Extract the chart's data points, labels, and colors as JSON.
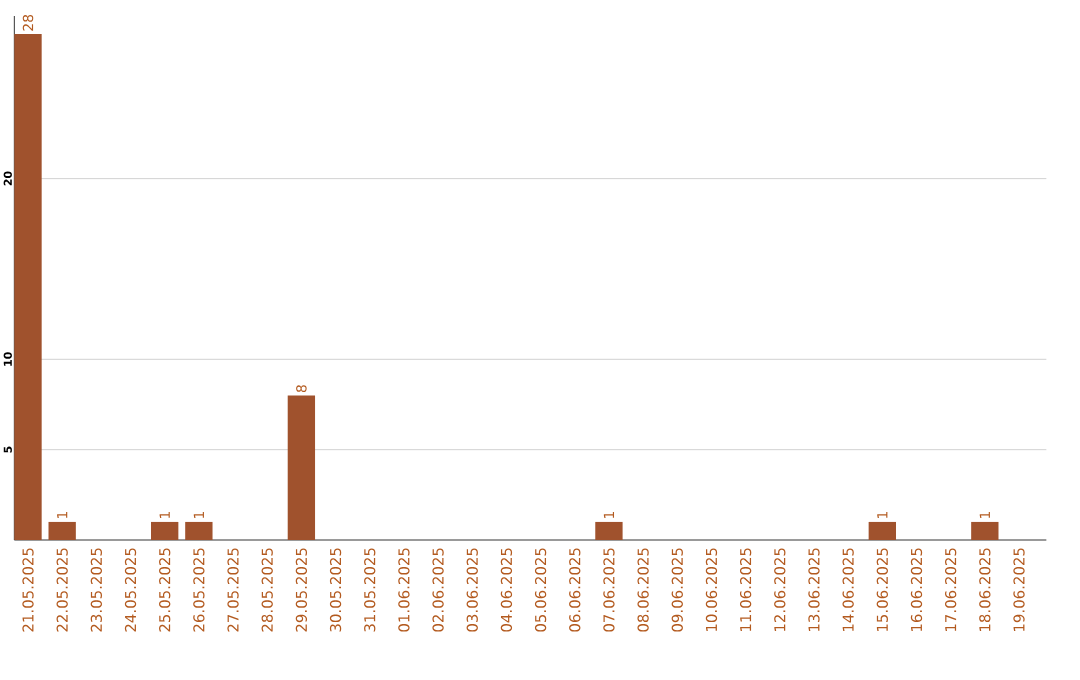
{
  "chart_data": {
    "type": "bar",
    "categories": [
      "21.05.2025",
      "22.05.2025",
      "23.05.2025",
      "24.05.2025",
      "25.05.2025",
      "26.05.2025",
      "27.05.2025",
      "28.05.2025",
      "29.05.2025",
      "30.05.2025",
      "31.05.2025",
      "01.06.2025",
      "02.06.2025",
      "03.06.2025",
      "04.06.2025",
      "05.06.2025",
      "06.06.2025",
      "07.06.2025",
      "08.06.2025",
      "09.06.2025",
      "10.06.2025",
      "11.06.2025",
      "12.06.2025",
      "13.06.2025",
      "14.06.2025",
      "15.06.2025",
      "16.06.2025",
      "17.06.2025",
      "18.06.2025",
      "19.06.2025"
    ],
    "values": [
      28,
      1,
      0,
      0,
      1,
      1,
      0,
      0,
      8,
      0,
      0,
      0,
      0,
      0,
      0,
      0,
      0,
      1,
      0,
      0,
      0,
      0,
      0,
      0,
      0,
      1,
      0,
      0,
      1,
      0
    ],
    "value_labels": [
      "28",
      "1",
      null,
      null,
      "1",
      "1",
      null,
      null,
      "8",
      null,
      null,
      null,
      null,
      null,
      null,
      null,
      null,
      "1",
      null,
      null,
      null,
      null,
      null,
      null,
      null,
      "1",
      null,
      null,
      "1",
      null
    ],
    "color": "#a0522d",
    "ylim": [
      0,
      29
    ],
    "yticks": [
      5,
      10,
      20
    ],
    "grid": "y"
  }
}
